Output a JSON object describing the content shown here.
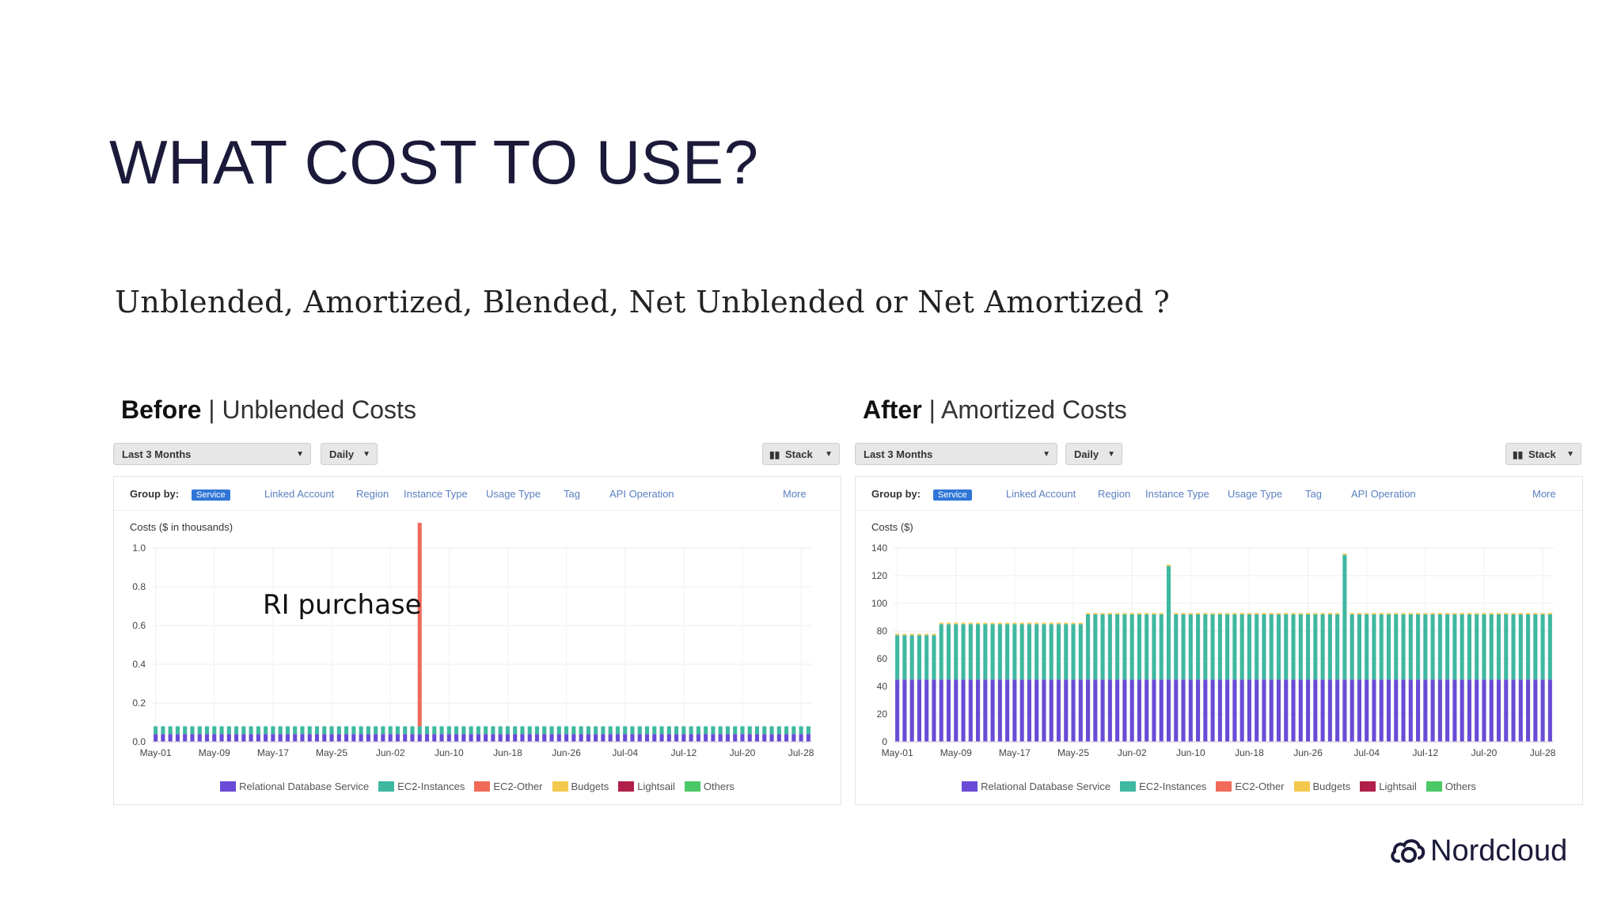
{
  "slide": {
    "title": "WHAT COST TO USE?",
    "subtitle": "Unblended, Amortized, Blended, Net Unblended or Net Amortized ?",
    "annotation": "RI purchase",
    "brand": "Nordcloud"
  },
  "colors": {
    "rds": "#6a4bd6",
    "ec2_instances": "#3fb8a0",
    "ec2_other": "#f06a5a",
    "budgets": "#f2c94c",
    "lightsail": "#b0204a",
    "others": "#4cc966",
    "chip": "#2f76d6",
    "link": "#5b7fbf"
  },
  "panels": [
    {
      "heading_bold": "Before",
      "heading_rest": "| Unblended Costs",
      "controls": {
        "range": "Last 3 Months",
        "granularity": "Daily",
        "view": "Stack"
      },
      "group_by": {
        "label": "Group by:",
        "chip": "Service",
        "options": [
          "Linked Account",
          "Region",
          "Instance Type",
          "Usage Type",
          "Tag",
          "API Operation"
        ],
        "more": "More"
      },
      "legend": [
        "Relational Database Service",
        "EC2-Instances",
        "EC2-Other",
        "Budgets",
        "Lightsail",
        "Others"
      ]
    },
    {
      "heading_bold": "After",
      "heading_rest": "| Amortized Costs",
      "controls": {
        "range": "Last 3 Months",
        "granularity": "Daily",
        "view": "Stack"
      },
      "group_by": {
        "label": "Group by:",
        "chip": "Service",
        "options": [
          "Linked Account",
          "Region",
          "Instance Type",
          "Usage Type",
          "Tag",
          "API Operation"
        ],
        "more": "More"
      },
      "legend": [
        "Relational Database Service",
        "EC2-Instances",
        "EC2-Other",
        "Budgets",
        "Lightsail",
        "Others"
      ]
    }
  ],
  "chart_data": [
    {
      "type": "bar",
      "stacked": true,
      "ylabel": "Costs ($ in thousands)",
      "ylim": [
        0,
        1.0
      ],
      "yticks": [
        "0.0",
        "0.2",
        "0.4",
        "0.6",
        "0.8",
        "1.0"
      ],
      "xticks": [
        "May-01",
        "May-09",
        "May-17",
        "May-25",
        "Jun-02",
        "Jun-10",
        "Jun-18",
        "Jun-26",
        "Jul-04",
        "Jul-12",
        "Jul-20",
        "Jul-28"
      ],
      "bar_count": 90,
      "grid": true,
      "legend_position": "bottom",
      "series": [
        {
          "name": "Relational Database Service",
          "color": "#6a4bd6",
          "pattern": "constant",
          "value": 0.04
        },
        {
          "name": "EC2-Instances",
          "color": "#3fb8a0",
          "pattern": "constant",
          "value": 0.04
        },
        {
          "name": "EC2-Other",
          "color": "#f06a5a",
          "spikes": [
            {
              "day": 36,
              "value": 1.05
            }
          ]
        }
      ]
    },
    {
      "type": "bar",
      "stacked": true,
      "ylabel": "Costs ($)",
      "ylim": [
        0,
        140
      ],
      "yticks": [
        "0",
        "20",
        "40",
        "60",
        "80",
        "100",
        "120",
        "140"
      ],
      "xticks": [
        "May-01",
        "May-09",
        "May-17",
        "May-25",
        "Jun-02",
        "Jun-10",
        "Jun-18",
        "Jun-26",
        "Jul-04",
        "Jul-12",
        "Jul-20",
        "Jul-28"
      ],
      "bar_count": 90,
      "grid": true,
      "legend_position": "bottom",
      "series": [
        {
          "name": "Relational Database Service",
          "color": "#6a4bd6",
          "pattern": "constant",
          "value": 45
        },
        {
          "name": "EC2-Instances",
          "color": "#3fb8a0",
          "levels": [
            {
              "from": 0,
              "to": 5,
              "value": 32
            },
            {
              "from": 6,
              "to": 25,
              "value": 40
            },
            {
              "from": 26,
              "to": 89,
              "value": 47
            }
          ],
          "spikes": [
            {
              "day": 37,
              "value": 82
            },
            {
              "day": 61,
              "value": 90
            }
          ]
        },
        {
          "name": "Budgets",
          "color": "#f2c94c",
          "pattern": "constant",
          "value": 1
        }
      ]
    }
  ]
}
